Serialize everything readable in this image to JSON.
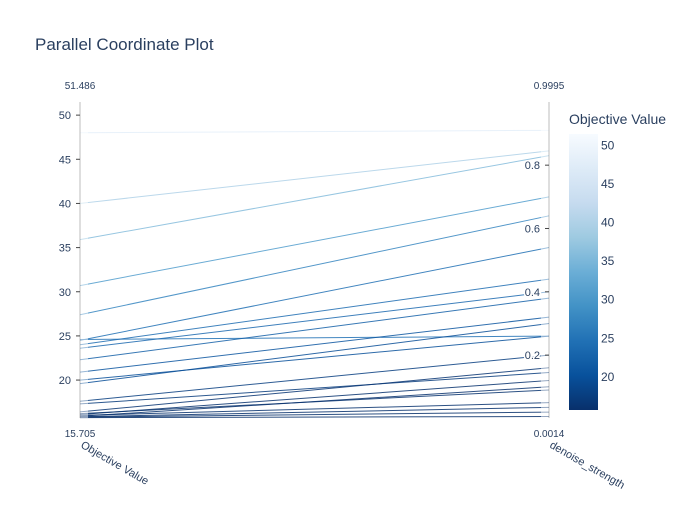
{
  "chart_data": {
    "type": "parallel_coordinates",
    "title": "Parallel Coordinate Plot",
    "dimensions": [
      {
        "label": "Objective Value",
        "range": [
          15.705,
          51.486
        ],
        "range_labels": [
          "15.705",
          "51.486"
        ],
        "ticks": [
          20,
          25,
          30,
          35,
          40,
          45,
          50
        ],
        "tick_labels": [
          "20",
          "25",
          "30",
          "35",
          "40",
          "45",
          "50"
        ]
      },
      {
        "label": "denoise_strength",
        "range": [
          0.0014,
          0.9995
        ],
        "range_labels": [
          "0.0014",
          "0.9995"
        ],
        "ticks": [
          0.2,
          0.4,
          0.6,
          0.8
        ],
        "tick_labels": [
          "0.2",
          "0.4",
          "0.6",
          "0.8"
        ]
      }
    ],
    "lines": [
      {
        "objective": 48.0,
        "denoise": 0.91
      },
      {
        "objective": 40.0,
        "denoise": 0.845
      },
      {
        "objective": 35.9,
        "denoise": 0.83
      },
      {
        "objective": 30.7,
        "denoise": 0.7
      },
      {
        "objective": 27.4,
        "denoise": 0.64
      },
      {
        "objective": 24.5,
        "denoise": 0.54
      },
      {
        "objective": 24.6,
        "denoise": 0.26
      },
      {
        "objective": 24.0,
        "denoise": 0.44
      },
      {
        "objective": 23.6,
        "denoise": 0.4
      },
      {
        "objective": 22.3,
        "denoise": 0.38
      },
      {
        "objective": 20.9,
        "denoise": 0.32
      },
      {
        "objective": 20.0,
        "denoise": 0.26
      },
      {
        "objective": 19.6,
        "denoise": 0.3
      },
      {
        "objective": 17.6,
        "denoise": 0.2
      },
      {
        "objective": 17.3,
        "denoise": 0.145
      },
      {
        "objective": 16.4,
        "denoise": 0.16
      },
      {
        "objective": 16.2,
        "denoise": 0.09
      },
      {
        "objective": 16.0,
        "denoise": 0.05
      },
      {
        "objective": 15.9,
        "denoise": 0.1
      },
      {
        "objective": 15.8,
        "denoise": 0.02
      },
      {
        "objective": 15.75,
        "denoise": 0.006
      },
      {
        "objective": 16.1,
        "denoise": 0.12
      },
      {
        "objective": 15.85,
        "denoise": 0.035
      }
    ],
    "colorbar": {
      "title": "Objective Value",
      "ticks": [
        20,
        25,
        30,
        35,
        40,
        45,
        50
      ],
      "tick_labels": [
        "20",
        "25",
        "30",
        "35",
        "40",
        "45",
        "50"
      ],
      "range": [
        15.705,
        51.486
      ],
      "colorscale": [
        "#08306b",
        "#08519c",
        "#2171b5",
        "#4292c6",
        "#6baed6",
        "#9ecae1",
        "#c6dbef",
        "#deebf7",
        "#f7fbff"
      ]
    }
  }
}
